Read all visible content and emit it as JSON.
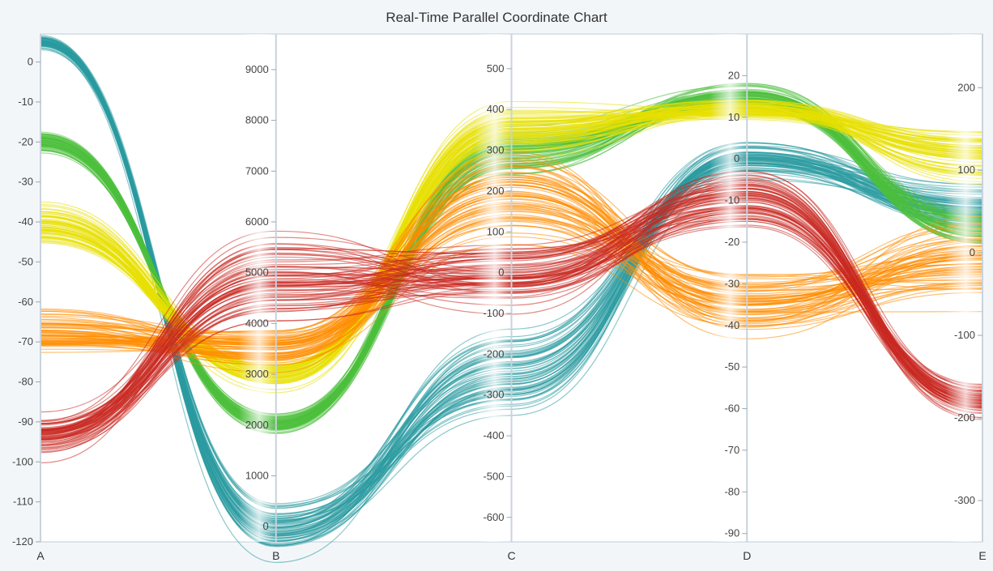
{
  "chart_data": {
    "type": "parallel-coordinates",
    "title": "Real-Time Parallel Coordinate Chart",
    "axes": [
      {
        "name": "A",
        "range": [
          -120,
          7
        ],
        "ticks": [
          0,
          -10,
          -20,
          -30,
          -40,
          -50,
          -60,
          -70,
          -80,
          -90,
          -100,
          -110,
          -120
        ]
      },
      {
        "name": "B",
        "range": [
          -300,
          9700
        ],
        "ticks": [
          9000,
          8000,
          7000,
          6000,
          5000,
          4000,
          3000,
          2000,
          1000,
          0
        ]
      },
      {
        "name": "C",
        "range": [
          -660,
          585
        ],
        "ticks": [
          500,
          400,
          300,
          200,
          100,
          0,
          -100,
          -200,
          -300,
          -400,
          -500,
          -600
        ]
      },
      {
        "name": "D",
        "range": [
          -92,
          30
        ],
        "ticks": [
          20,
          10,
          0,
          -10,
          -20,
          -30,
          -40,
          -50,
          -60,
          -70,
          -80,
          -90
        ]
      },
      {
        "name": "E",
        "range": [
          -350,
          265
        ],
        "ticks": [
          200,
          100,
          0,
          -100,
          -200,
          -300
        ]
      }
    ],
    "series": [
      {
        "color": "#2a9aa0",
        "values": [
          5,
          0,
          -250,
          0,
          50
        ],
        "spread": [
          2,
          800,
          150,
          6,
          40
        ]
      },
      {
        "color": "#4cbf3c",
        "values": [
          -20,
          2000,
          300,
          15,
          30
        ],
        "spread": [
          4,
          300,
          80,
          4,
          30
        ]
      },
      {
        "color": "#e8e000",
        "values": [
          -40,
          3000,
          350,
          12,
          120
        ],
        "spread": [
          8,
          400,
          80,
          3,
          50
        ]
      },
      {
        "color": "#ff8c00",
        "values": [
          -68,
          3500,
          200,
          -35,
          -20
        ],
        "spread": [
          8,
          600,
          150,
          10,
          80
        ]
      },
      {
        "color": "#c82820",
        "values": [
          -93,
          5000,
          -10,
          -10,
          -180
        ],
        "spread": [
          8,
          1200,
          110,
          10,
          30
        ]
      }
    ],
    "grid": false,
    "legend": "none"
  }
}
